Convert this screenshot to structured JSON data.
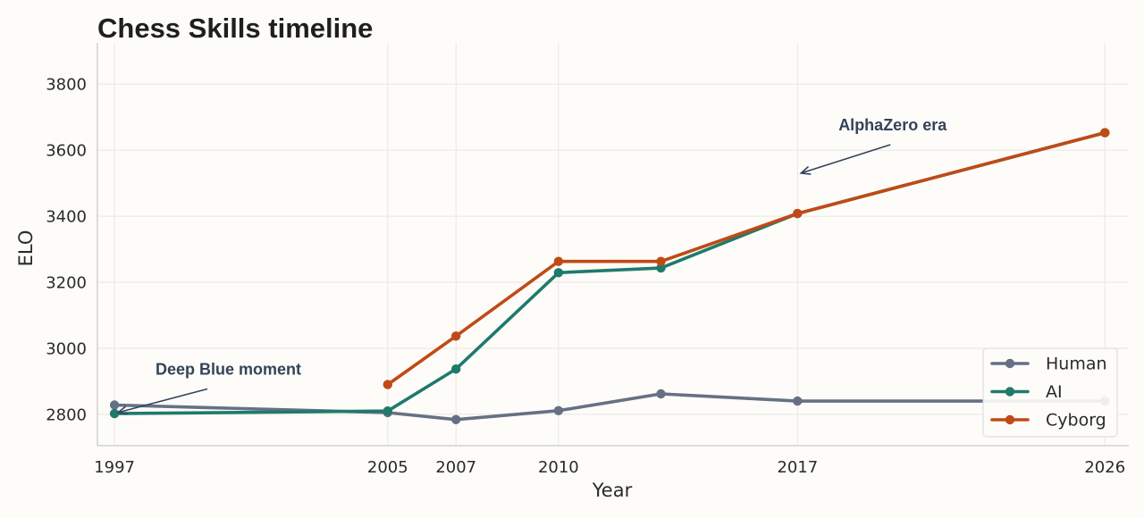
{
  "chart_data": {
    "type": "line",
    "title": "Chess Skills timeline",
    "xlabel": "Year",
    "ylabel": "ELO",
    "x_ticks": [
      "1997",
      "2005",
      "2007",
      "2010",
      "2017",
      "2026"
    ],
    "y_ticks": [
      "2800",
      "3000",
      "3200",
      "3400",
      "3600",
      "3800"
    ],
    "xlim": [
      1996.5,
      2026.7
    ],
    "ylim": [
      2705,
      3925
    ],
    "grid": true,
    "legend_position": "bottom-right",
    "series": [
      {
        "name": "Human",
        "color": "#667085",
        "points": [
          [
            1997,
            2828
          ],
          [
            2005,
            2805
          ],
          [
            2007,
            2784
          ],
          [
            2010,
            2811
          ],
          [
            2013,
            2862
          ],
          [
            2017,
            2840
          ],
          [
            2026,
            2840
          ]
        ]
      },
      {
        "name": "AI",
        "color": "#1f7a6c",
        "points": [
          [
            1997,
            2802
          ],
          [
            2005,
            2810
          ],
          [
            2007,
            2937
          ],
          [
            2010,
            3229
          ],
          [
            2013,
            3243
          ],
          [
            2017,
            3408
          ],
          [
            2026,
            3653
          ]
        ]
      },
      {
        "name": "Cyborg",
        "color": "#c04a17",
        "points": [
          [
            2005,
            2890
          ],
          [
            2007,
            3037
          ],
          [
            2010,
            3263
          ],
          [
            2013,
            3263
          ],
          [
            2017,
            3408
          ],
          [
            2026,
            3653
          ]
        ]
      }
    ],
    "annotations": [
      {
        "text": "Deep Blue moment",
        "point": [
          1997,
          2800
        ],
        "text_at": [
          1998.2,
          2920
        ]
      },
      {
        "text": "AlphaZero era",
        "point": [
          2017,
          3525
        ],
        "text_at": [
          2018.2,
          3660
        ]
      }
    ]
  }
}
